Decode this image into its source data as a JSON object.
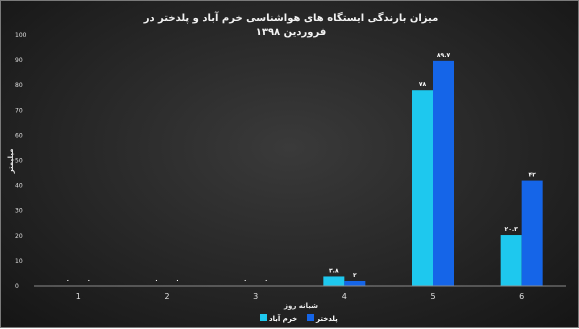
{
  "chart_data": {
    "type": "bar",
    "title_lines": [
      "میزان بارندگی ایستگاه های هواشناسی خرم آباد و پلدختر در",
      "فروردین ۱۳۹۸"
    ],
    "xlabel": "شبانه روز",
    "ylabel": "میلیمتر",
    "categories": [
      "1",
      "2",
      "3",
      "4",
      "5",
      "6"
    ],
    "ylim": [
      0,
      100
    ],
    "yticks": [
      "0",
      "10",
      "20",
      "30",
      "40",
      "50",
      "60",
      "70",
      "80",
      "90",
      "100"
    ],
    "grid": false,
    "legend_position": "bottom",
    "series": [
      {
        "name": "خرم آباد",
        "color": "#1ec8ee",
        "values": [
          0,
          0,
          0,
          3.8,
          78,
          20.3
        ],
        "labels": [
          "۰",
          "۰",
          "۰",
          "۳.۸",
          "۷۸",
          "۲۰.۳"
        ]
      },
      {
        "name": "پلدختر",
        "color": "#1565e8",
        "values": [
          0,
          0,
          0,
          2,
          89.7,
          42
        ],
        "labels": [
          "۰",
          "۰",
          "۰",
          "۲",
          "۸۹.۷",
          "۴۲"
        ]
      }
    ]
  }
}
